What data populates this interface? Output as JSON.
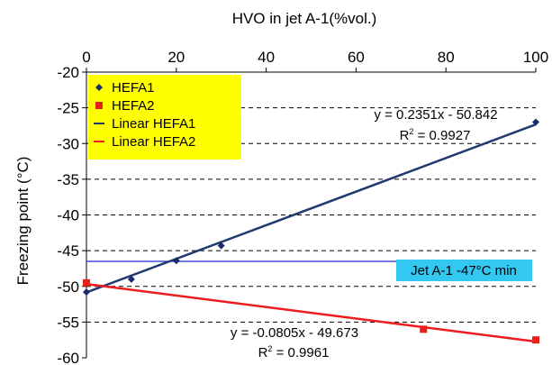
{
  "chart_data": {
    "type": "scatter",
    "xlabel": "HVO in jet A-1(%vol.)",
    "ylabel": "Freezing point (°C)",
    "xlim": [
      0,
      100
    ],
    "ylim": [
      -60,
      -20
    ],
    "x_ticks": [
      "0",
      "20",
      "40",
      "60",
      "80",
      "100"
    ],
    "y_ticks": [
      "-20",
      "-25",
      "-30",
      "-35",
      "-40",
      "-45",
      "-50",
      "-55",
      "-60"
    ],
    "x_axis_position": "top",
    "grid": "dashed horizontal",
    "legend": "top-left",
    "series": [
      {
        "name": "HEFA1",
        "marker": "diamond",
        "color": "#1a2a6c",
        "points": [
          [
            0,
            -50.8
          ],
          [
            10,
            -49.0
          ],
          [
            20,
            -46.4
          ],
          [
            30,
            -44.3
          ],
          [
            100,
            -27.0
          ]
        ]
      },
      {
        "name": "HEFA2",
        "marker": "square",
        "color": "#e8221b",
        "points": [
          [
            0,
            -49.5
          ],
          [
            75,
            -56.0
          ],
          [
            100,
            -57.5
          ]
        ]
      }
    ],
    "trendlines": [
      {
        "name": "Linear HEFA1",
        "color": "#1f3a6e",
        "slope": 0.2351,
        "intercept": -50.842
      },
      {
        "name": "Linear HEFA2",
        "color": "#ee1c1c",
        "slope": -0.0805,
        "intercept": -49.673
      }
    ],
    "reference_line": {
      "y": -46.5,
      "x_end": 70,
      "color": "#1f2fd0"
    },
    "annotations": {
      "eq1": "y = 0.2351x - 50.842",
      "r2_1": {
        "prefix": "R",
        "sup": "2",
        "suffix": " = 0.9927"
      },
      "eq2": "y = -0.0805x - 49.673",
      "r2_2": {
        "prefix": "R",
        "sup": "2",
        "suffix": " = 0.9961"
      },
      "jet_label": "Jet A-1 -47°C min",
      "jet_label_bg": "#33c8f0"
    },
    "legend_bg": "#ffff00"
  }
}
